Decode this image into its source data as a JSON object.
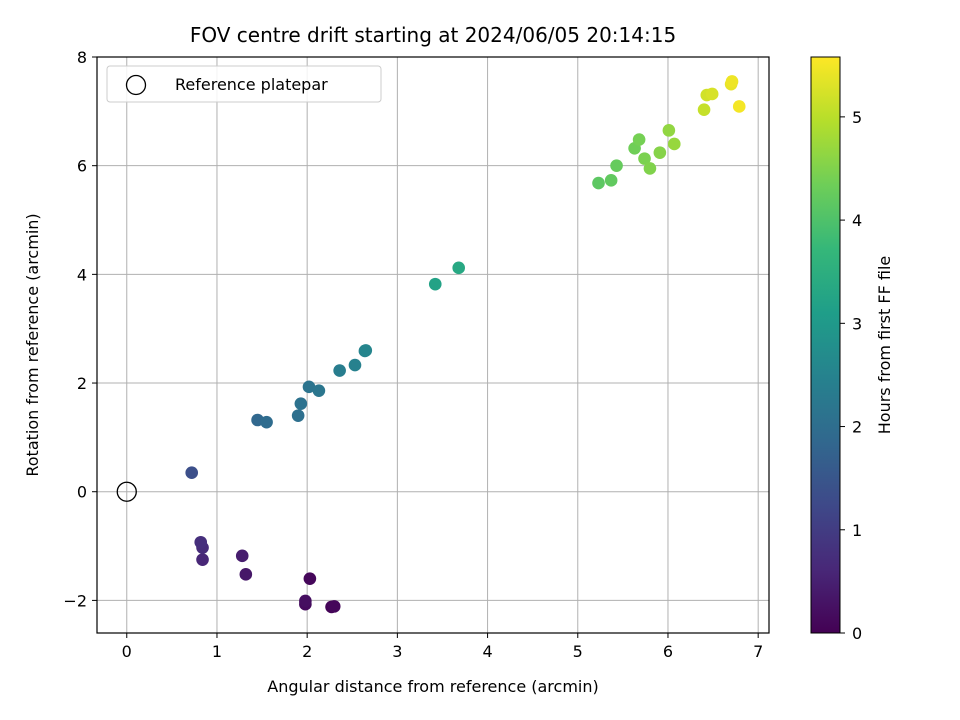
{
  "chart_data": {
    "type": "scatter",
    "title": "FOV centre drift starting at 2024/06/05 20:14:15",
    "xlabel": "Angular distance from reference (arcmin)",
    "ylabel": "Rotation from reference (arcmin)",
    "colorbar_label": "Hours from first FF file",
    "xlim": [
      -0.33,
      7.12
    ],
    "ylim": [
      -2.6,
      8.0
    ],
    "x_ticks": [
      0,
      1,
      2,
      3,
      4,
      5,
      6,
      7
    ],
    "y_ticks": [
      -2,
      0,
      2,
      4,
      6,
      8
    ],
    "colorbar_range": [
      0,
      5.58
    ],
    "colorbar_ticks": [
      0,
      1,
      2,
      3,
      4,
      5
    ],
    "colormap": "viridis",
    "grid": true,
    "legend": {
      "position": "upper-left",
      "entries": [
        "Reference platepar"
      ]
    },
    "reference_point": {
      "x": 0,
      "y": 0
    },
    "points": [
      {
        "x": 2.27,
        "y": -2.12,
        "c": 0.05
      },
      {
        "x": 2.3,
        "y": -2.11,
        "c": 0.1
      },
      {
        "x": 1.98,
        "y": -2.07,
        "c": 0.15
      },
      {
        "x": 1.98,
        "y": -2.01,
        "c": 0.2
      },
      {
        "x": 2.03,
        "y": -1.6,
        "c": 0.1
      },
      {
        "x": 1.32,
        "y": -1.52,
        "c": 0.35
      },
      {
        "x": 1.28,
        "y": -1.18,
        "c": 0.45
      },
      {
        "x": 0.84,
        "y": -1.25,
        "c": 0.6
      },
      {
        "x": 0.84,
        "y": -1.03,
        "c": 0.7
      },
      {
        "x": 0.82,
        "y": -0.93,
        "c": 0.75
      },
      {
        "x": 0.72,
        "y": 0.35,
        "c": 1.35
      },
      {
        "x": 1.45,
        "y": 1.32,
        "c": 1.85
      },
      {
        "x": 1.55,
        "y": 1.28,
        "c": 1.95
      },
      {
        "x": 1.9,
        "y": 1.4,
        "c": 2.05
      },
      {
        "x": 1.93,
        "y": 1.62,
        "c": 2.1
      },
      {
        "x": 2.02,
        "y": 1.93,
        "c": 2.15
      },
      {
        "x": 2.13,
        "y": 1.86,
        "c": 2.2
      },
      {
        "x": 2.36,
        "y": 2.23,
        "c": 2.35
      },
      {
        "x": 2.53,
        "y": 2.33,
        "c": 2.45
      },
      {
        "x": 2.64,
        "y": 2.59,
        "c": 2.5
      },
      {
        "x": 2.65,
        "y": 2.6,
        "c": 2.55
      },
      {
        "x": 3.42,
        "y": 3.82,
        "c": 3.2
      },
      {
        "x": 3.68,
        "y": 4.12,
        "c": 3.35
      },
      {
        "x": 5.23,
        "y": 5.68,
        "c": 4.15
      },
      {
        "x": 5.37,
        "y": 5.73,
        "c": 4.2
      },
      {
        "x": 5.43,
        "y": 6.0,
        "c": 4.25
      },
      {
        "x": 5.63,
        "y": 6.32,
        "c": 4.35
      },
      {
        "x": 5.68,
        "y": 6.48,
        "c": 4.4
      },
      {
        "x": 5.74,
        "y": 6.13,
        "c": 4.45
      },
      {
        "x": 5.8,
        "y": 5.95,
        "c": 4.5
      },
      {
        "x": 5.91,
        "y": 6.24,
        "c": 4.55
      },
      {
        "x": 6.01,
        "y": 6.65,
        "c": 4.65
      },
      {
        "x": 6.07,
        "y": 6.4,
        "c": 4.7
      },
      {
        "x": 6.4,
        "y": 7.03,
        "c": 5.1
      },
      {
        "x": 6.43,
        "y": 7.3,
        "c": 5.2
      },
      {
        "x": 6.49,
        "y": 7.32,
        "c": 5.25
      },
      {
        "x": 6.7,
        "y": 7.5,
        "c": 5.4
      },
      {
        "x": 6.71,
        "y": 7.55,
        "c": 5.45
      },
      {
        "x": 6.79,
        "y": 7.09,
        "c": 5.5
      }
    ]
  }
}
